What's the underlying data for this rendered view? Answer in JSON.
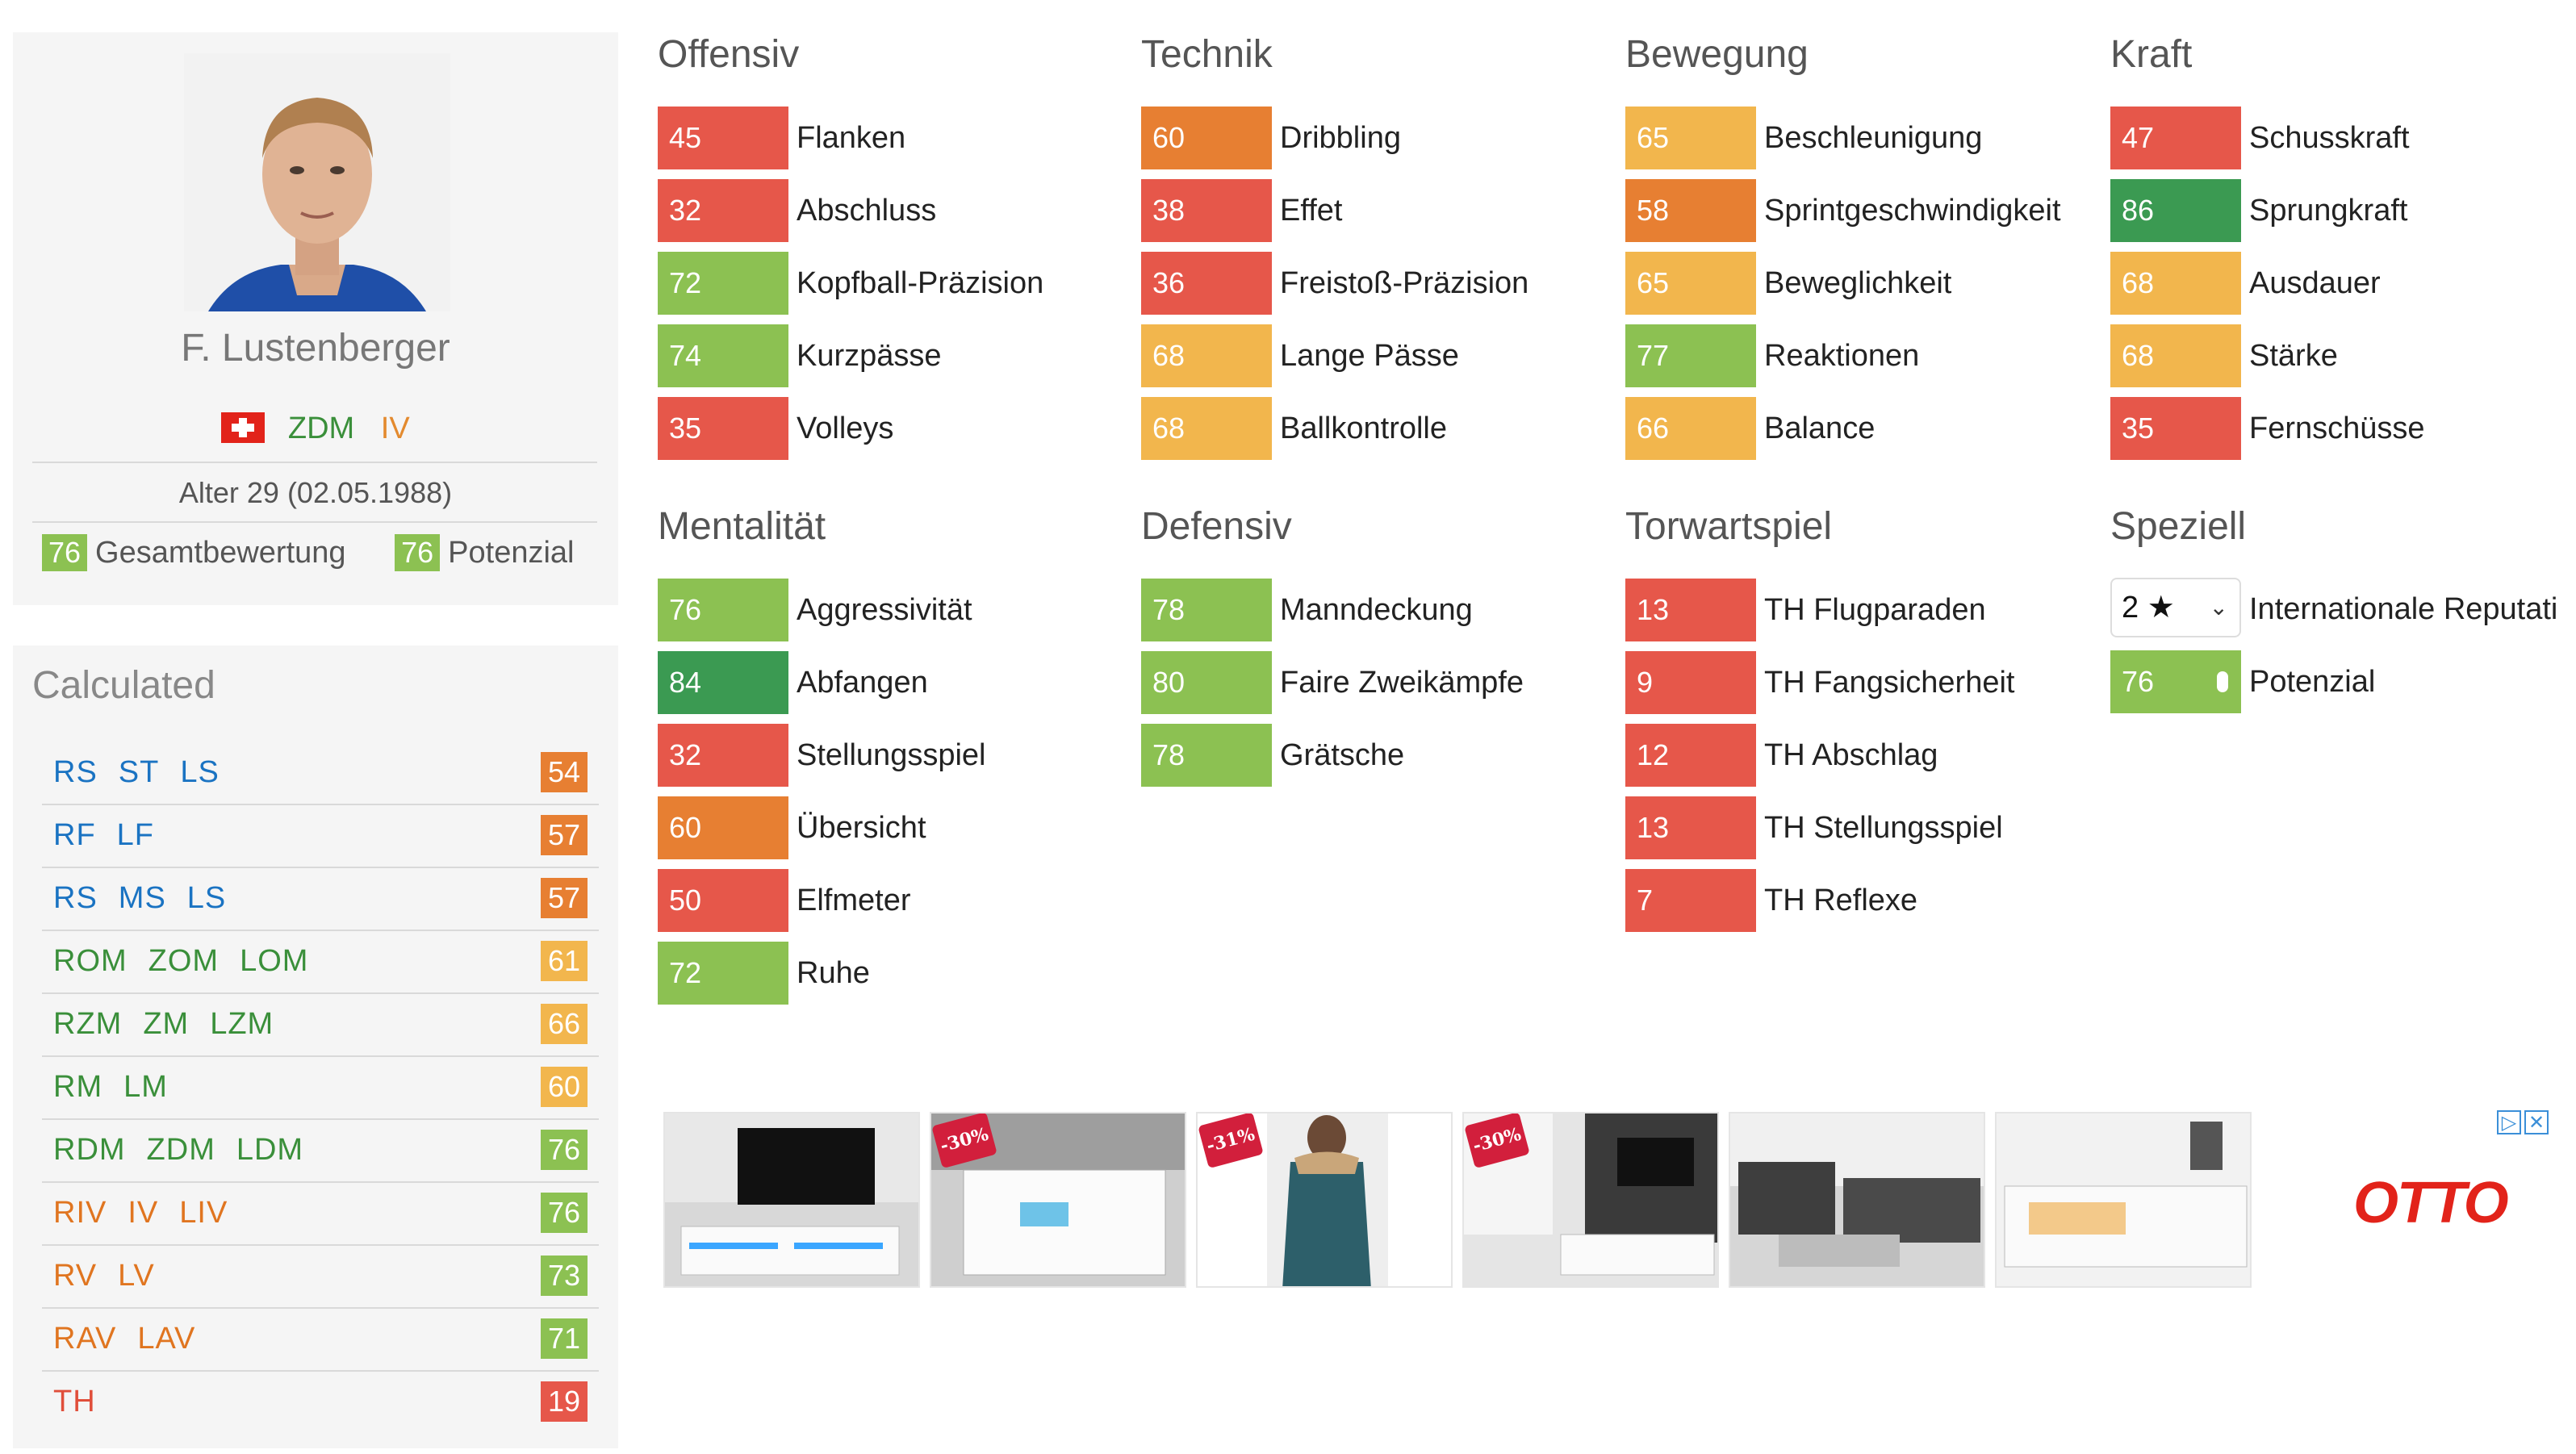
{
  "player": {
    "name": "F. Lustenberger",
    "positions": [
      "ZDM",
      "IV"
    ],
    "age_text": "Alter 29 (02.05.1988)",
    "overall_label": "Gesamtbewertung",
    "overall_value": "76",
    "potential_label": "Potenzial",
    "potential_value": "76",
    "nationality_flag_icon": "switzerland-flag-icon"
  },
  "calculated": {
    "title": "Calculated",
    "rows": [
      {
        "positions": [
          "RS",
          "ST",
          "LS"
        ],
        "value": "54",
        "pos_color": "blue",
        "box_color": "#e77f32"
      },
      {
        "positions": [
          "RF",
          "LF"
        ],
        "value": "57",
        "pos_color": "blue",
        "box_color": "#e77f32"
      },
      {
        "positions": [
          "RS",
          "MS",
          "LS"
        ],
        "value": "57",
        "pos_color": "blue",
        "box_color": "#e77f32"
      },
      {
        "positions": [
          "ROM",
          "ZOM",
          "LOM"
        ],
        "value": "61",
        "pos_color": "green",
        "box_color": "#f2b64d"
      },
      {
        "positions": [
          "RZM",
          "ZM",
          "LZM"
        ],
        "value": "66",
        "pos_color": "green",
        "box_color": "#f2b64d"
      },
      {
        "positions": [
          "RM",
          "LM"
        ],
        "value": "60",
        "pos_color": "green",
        "box_color": "#f2b64d"
      },
      {
        "positions": [
          "RDM",
          "ZDM",
          "LDM"
        ],
        "value": "76",
        "pos_color": "green",
        "box_color": "#8cc152"
      },
      {
        "positions": [
          "RIV",
          "IV",
          "LIV"
        ],
        "value": "76",
        "pos_color": "orange",
        "box_color": "#8cc152"
      },
      {
        "positions": [
          "RV",
          "LV"
        ],
        "value": "73",
        "pos_color": "orange",
        "box_color": "#8cc152"
      },
      {
        "positions": [
          "RAV",
          "LAV"
        ],
        "value": "71",
        "pos_color": "orange",
        "box_color": "#8cc152"
      },
      {
        "positions": [
          "TH"
        ],
        "value": "19",
        "pos_color": "red",
        "box_color": "#e6574a"
      }
    ]
  },
  "sections": {
    "offensiv": {
      "title": "Offensiv",
      "stats": [
        {
          "value": "45",
          "label": "Flanken",
          "color": "red"
        },
        {
          "value": "32",
          "label": "Abschluss",
          "color": "red"
        },
        {
          "value": "72",
          "label": "Kopfball-Präzision",
          "color": "lgreen"
        },
        {
          "value": "74",
          "label": "Kurzpässe",
          "color": "lgreen"
        },
        {
          "value": "35",
          "label": "Volleys",
          "color": "red"
        }
      ]
    },
    "technik": {
      "title": "Technik",
      "stats": [
        {
          "value": "60",
          "label": "Dribbling",
          "color": "orange"
        },
        {
          "value": "38",
          "label": "Effet",
          "color": "red"
        },
        {
          "value": "36",
          "label": "Freistoß-Präzision",
          "color": "red"
        },
        {
          "value": "68",
          "label": "Lange Pässe",
          "color": "yellow"
        },
        {
          "value": "68",
          "label": "Ballkontrolle",
          "color": "yellow"
        }
      ]
    },
    "bewegung": {
      "title": "Bewegung",
      "stats": [
        {
          "value": "65",
          "label": "Beschleunigung",
          "color": "yellow"
        },
        {
          "value": "58",
          "label": "Sprintgeschwindigkeit",
          "color": "orange"
        },
        {
          "value": "65",
          "label": "Beweglichkeit",
          "color": "yellow"
        },
        {
          "value": "77",
          "label": "Reaktionen",
          "color": "lgreen"
        },
        {
          "value": "66",
          "label": "Balance",
          "color": "yellow"
        }
      ]
    },
    "kraft": {
      "title": "Kraft",
      "stats": [
        {
          "value": "47",
          "label": "Schusskraft",
          "color": "red"
        },
        {
          "value": "86",
          "label": "Sprungkraft",
          "color": "dgreen"
        },
        {
          "value": "68",
          "label": "Ausdauer",
          "color": "yellow"
        },
        {
          "value": "68",
          "label": "Stärke",
          "color": "yellow"
        },
        {
          "value": "35",
          "label": "Fernschüsse",
          "color": "red"
        }
      ]
    },
    "mentalitaet": {
      "title": "Mentalität",
      "stats": [
        {
          "value": "76",
          "label": "Aggressivität",
          "color": "lgreen"
        },
        {
          "value": "84",
          "label": "Abfangen",
          "color": "dgreen"
        },
        {
          "value": "32",
          "label": "Stellungsspiel",
          "color": "red"
        },
        {
          "value": "60",
          "label": "Übersicht",
          "color": "orange"
        },
        {
          "value": "50",
          "label": "Elfmeter",
          "color": "red"
        },
        {
          "value": "72",
          "label": "Ruhe",
          "color": "lgreen"
        }
      ]
    },
    "defensiv": {
      "title": "Defensiv",
      "stats": [
        {
          "value": "78",
          "label": "Manndeckung",
          "color": "lgreen"
        },
        {
          "value": "80",
          "label": "Faire Zweikämpfe",
          "color": "lgreen"
        },
        {
          "value": "78",
          "label": "Grätsche",
          "color": "lgreen"
        }
      ]
    },
    "torwartspiel": {
      "title": "Torwartspiel",
      "stats": [
        {
          "value": "13",
          "label": "TH Flugparaden",
          "color": "red"
        },
        {
          "value": "9",
          "label": "TH Fangsicherheit",
          "color": "red"
        },
        {
          "value": "12",
          "label": "TH Abschlag",
          "color": "red"
        },
        {
          "value": "13",
          "label": "TH Stellungsspiel",
          "color": "red"
        },
        {
          "value": "7",
          "label": "TH Reflexe",
          "color": "red"
        }
      ]
    },
    "speziell": {
      "title": "Speziell",
      "reputation_select": "2 ★",
      "reputation_label": "Internationale Reputati",
      "potential_value": "76",
      "potential_label": "Potenzial"
    }
  },
  "ads": {
    "brand": "OTTO",
    "tiles": [
      {
        "badge": ""
      },
      {
        "badge": "-30%"
      },
      {
        "badge": "-31%"
      },
      {
        "badge": "-30%"
      },
      {
        "badge": ""
      },
      {
        "badge": ""
      }
    ]
  }
}
